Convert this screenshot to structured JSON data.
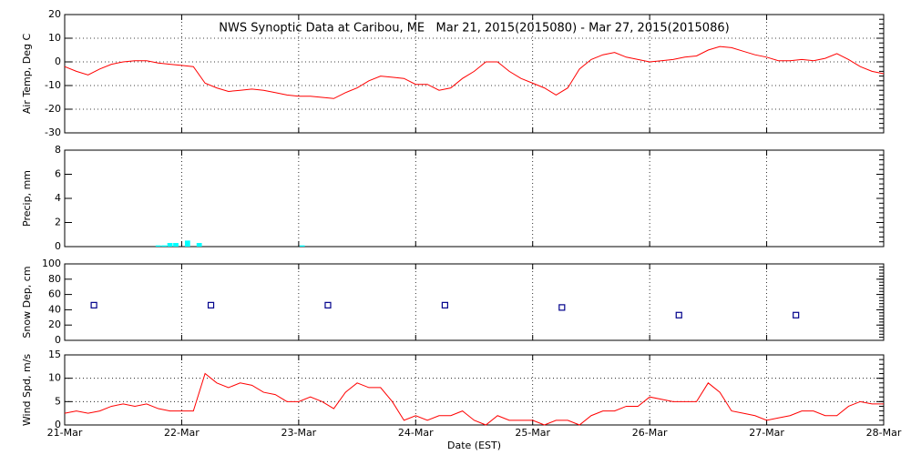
{
  "chart_data": [
    {
      "type": "line",
      "title": "NWS Synoptic Data at Caribou, ME   Mar 21, 2015(2015080) - Mar 27, 2015(2015086)",
      "ylabel": "Air Temp, Deg C",
      "x": [
        0,
        0.1,
        0.2,
        0.3,
        0.4,
        0.5,
        0.6,
        0.7,
        0.8,
        0.9,
        1,
        1.1,
        1.2,
        1.3,
        1.4,
        1.5,
        1.6,
        1.7,
        1.8,
        1.9,
        2,
        2.1,
        2.2,
        2.3,
        2.4,
        2.5,
        2.6,
        2.7,
        2.8,
        2.9,
        3,
        3.1,
        3.2,
        3.3,
        3.4,
        3.5,
        3.6,
        3.7,
        3.8,
        3.9,
        4,
        4.1,
        4.2,
        4.3,
        4.4,
        4.5,
        4.6,
        4.7,
        4.8,
        4.9,
        5,
        5.1,
        5.2,
        5.3,
        5.4,
        5.5,
        5.6,
        5.7,
        5.8,
        5.9,
        6,
        6.1,
        6.2,
        6.3,
        6.4,
        6.5,
        6.6,
        6.7,
        6.8,
        6.9,
        7
      ],
      "values": [
        -2,
        -4,
        -5.5,
        -3,
        -1,
        0,
        0.5,
        0.5,
        -0.5,
        -1,
        -1.5,
        -2,
        -9,
        -11,
        -12.5,
        -12,
        -11.5,
        -12,
        -13,
        -14,
        -14.5,
        -14.5,
        -15,
        -15.5,
        -13,
        -11,
        -8,
        -6,
        -6.5,
        -7,
        -9.5,
        -9.5,
        -12,
        -11,
        -7,
        -4,
        0,
        0,
        -4,
        -7,
        -9,
        -11,
        -14,
        -11,
        -3,
        1,
        3,
        4,
        2,
        1,
        0,
        0.5,
        1,
        2,
        2.5,
        5,
        6.5,
        6,
        4.5,
        3,
        2,
        0.5,
        0.5,
        1,
        0.5,
        1.5,
        3.5,
        1,
        -2,
        -4,
        -5
      ],
      "color": "#ff0000",
      "xlim": [
        0,
        7
      ],
      "xticks": [
        0,
        1,
        2,
        3,
        4,
        5,
        6,
        7
      ],
      "ylim": [
        -30,
        20
      ],
      "yticks": [
        -30,
        -20,
        -10,
        0,
        10,
        20
      ],
      "grid": "both"
    },
    {
      "type": "bar",
      "ylabel": "Precip, mm",
      "x": [
        0.8,
        0.85,
        0.9,
        0.95,
        1.05,
        1.15,
        2.03
      ],
      "values": [
        0.1,
        0.1,
        0.3,
        0.3,
        0.5,
        0.3,
        0.1
      ],
      "color": "#00ffff",
      "xlim": [
        0,
        7
      ],
      "xticks": [
        0,
        1,
        2,
        3,
        4,
        5,
        6,
        7
      ],
      "ylim": [
        0,
        8
      ],
      "yticks": [
        0,
        2,
        4,
        6,
        8
      ],
      "grid": "x"
    },
    {
      "type": "scatter",
      "ylabel": "Snow Dep, cm",
      "x": [
        0.25,
        1.25,
        2.25,
        3.25,
        4.25,
        5.25,
        6.25
      ],
      "values": [
        46,
        46,
        46,
        46,
        43,
        33,
        33
      ],
      "color": "#00008b",
      "xlim": [
        0,
        7
      ],
      "xticks": [
        0,
        1,
        2,
        3,
        4,
        5,
        6,
        7
      ],
      "ylim": [
        0,
        100
      ],
      "yticks": [
        0,
        20,
        40,
        60,
        80,
        100
      ],
      "grid": "x"
    },
    {
      "type": "line",
      "ylabel": "Wind Spd, m/s",
      "xlabel": "Date (EST)",
      "x": [
        0,
        0.1,
        0.2,
        0.3,
        0.4,
        0.5,
        0.6,
        0.7,
        0.8,
        0.9,
        1,
        1.1,
        1.2,
        1.3,
        1.4,
        1.5,
        1.6,
        1.7,
        1.8,
        1.9,
        2,
        2.1,
        2.2,
        2.3,
        2.4,
        2.5,
        2.6,
        2.7,
        2.8,
        2.9,
        3,
        3.1,
        3.2,
        3.3,
        3.4,
        3.5,
        3.6,
        3.7,
        3.8,
        3.9,
        4,
        4.1,
        4.2,
        4.3,
        4.4,
        4.5,
        4.6,
        4.7,
        4.8,
        4.9,
        5,
        5.1,
        5.2,
        5.3,
        5.4,
        5.5,
        5.6,
        5.7,
        5.8,
        5.9,
        6,
        6.1,
        6.2,
        6.3,
        6.4,
        6.5,
        6.6,
        6.7,
        6.8,
        6.9,
        7
      ],
      "values": [
        2.5,
        3,
        2.5,
        3,
        4,
        4.5,
        4,
        4.5,
        3.5,
        3,
        3,
        3,
        11,
        9,
        8,
        9,
        8.5,
        7,
        6.5,
        5,
        5,
        6,
        5,
        3.5,
        7,
        9,
        8,
        8,
        5,
        1,
        2,
        1,
        2,
        2,
        3,
        1,
        0,
        2,
        1,
        1,
        1,
        0,
        1,
        1,
        0,
        2,
        3,
        3,
        4,
        4,
        6,
        5.5,
        5,
        5,
        5,
        9,
        7,
        3,
        2.5,
        2,
        1,
        1.5,
        2,
        3,
        3,
        2,
        2,
        4,
        5,
        4.5,
        4.5
      ],
      "color": "#ff0000",
      "xlim": [
        0,
        7
      ],
      "xticks": [
        {
          "value": 0,
          "label": "21-Mar"
        },
        {
          "value": 1,
          "label": "22-Mar"
        },
        {
          "value": 2,
          "label": "23-Mar"
        },
        {
          "value": 3,
          "label": "24-Mar"
        },
        {
          "value": 4,
          "label": "25-Mar"
        },
        {
          "value": 5,
          "label": "26-Mar"
        },
        {
          "value": 6,
          "label": "27-Mar"
        },
        {
          "value": 7,
          "label": "28-Mar"
        }
      ],
      "ylim": [
        0,
        15
      ],
      "yticks": [
        0,
        5,
        10,
        15
      ],
      "grid": "both"
    }
  ]
}
